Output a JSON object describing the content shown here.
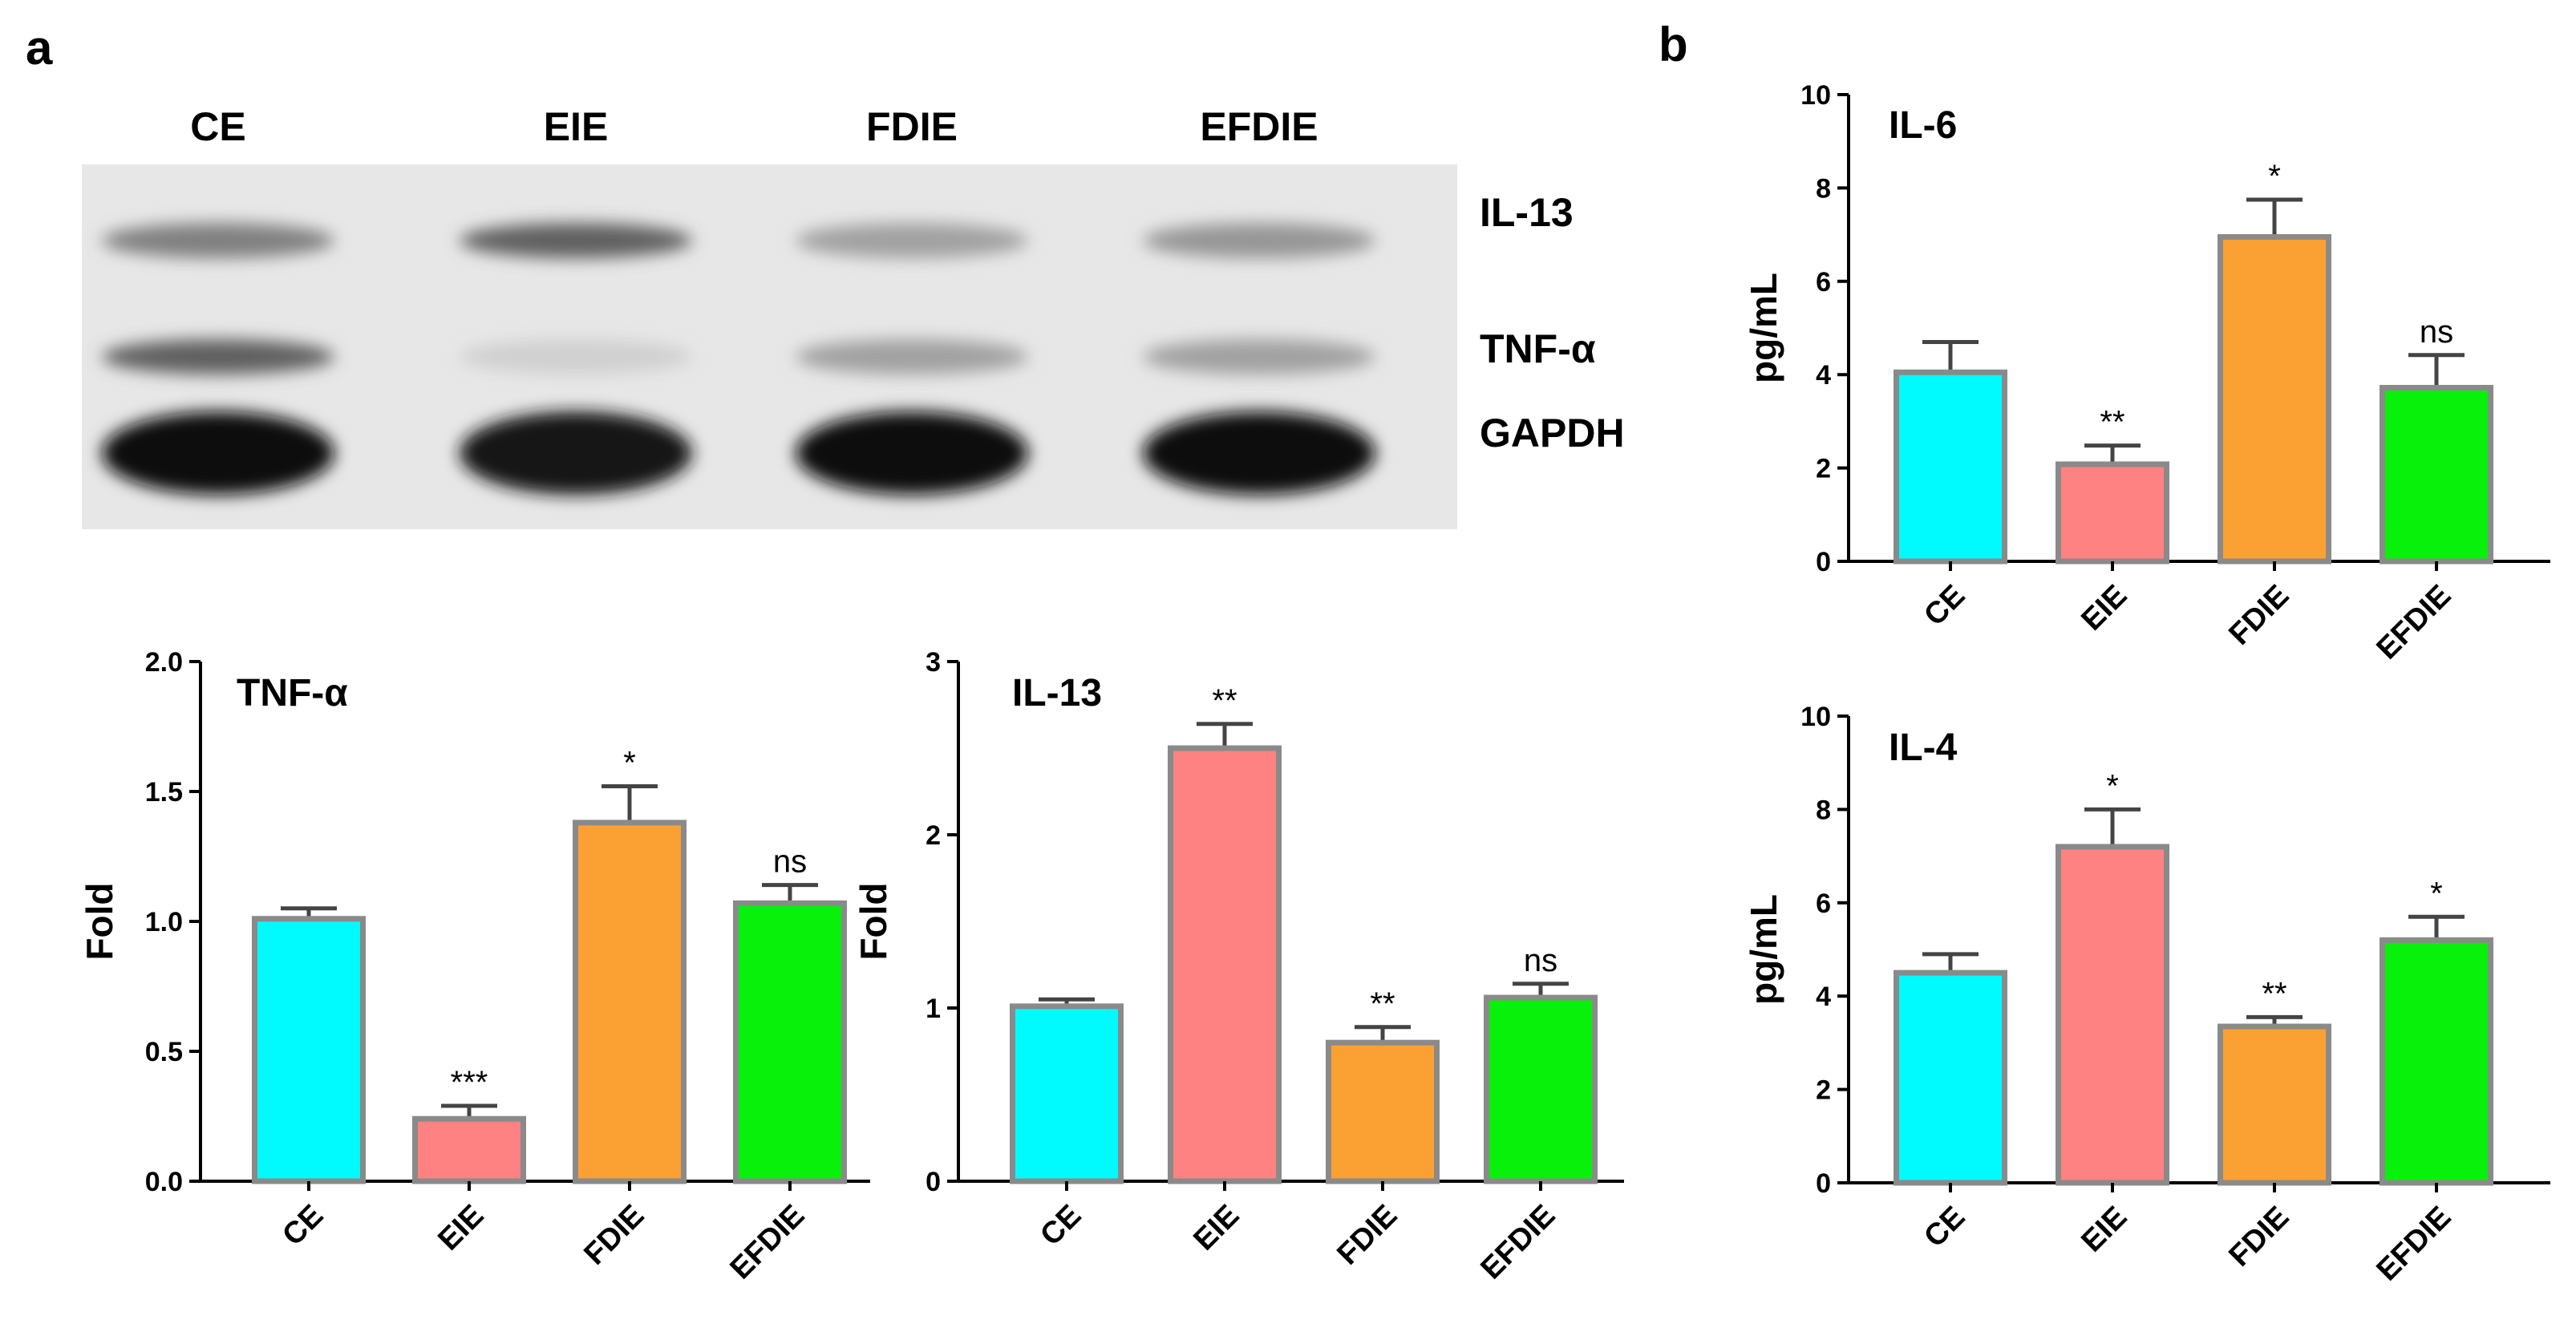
{
  "panels": {
    "a": "a",
    "b": "b"
  },
  "blot": {
    "lanes": [
      "CE",
      "EIE",
      "FDIE",
      "EFDIE"
    ],
    "bands": [
      {
        "label": "IL-13",
        "intensity": [
          0.45,
          0.6,
          0.3,
          0.35
        ]
      },
      {
        "label": "TNF-α",
        "intensity": [
          0.6,
          0.08,
          0.3,
          0.3
        ]
      },
      {
        "label": "GAPDH",
        "intensity": [
          0.98,
          0.95,
          1.0,
          1.0
        ]
      }
    ]
  },
  "colors": {
    "CE": "#00fbfe",
    "EIE": "#fd8281",
    "FDIE": "#fba134",
    "EFDIE": "#08f10a",
    "bar_outline": "#8a8a8a",
    "axis": "#000000"
  },
  "chart_data": [
    {
      "id": "tnf",
      "type": "bar",
      "title": "TNF-α",
      "ylabel": "Fold",
      "xlabel": "",
      "categories": [
        "CE",
        "EIE",
        "FDIE",
        "EFDIE"
      ],
      "values": [
        1.01,
        0.24,
        1.38,
        1.07
      ],
      "errors": [
        0.04,
        0.05,
        0.14,
        0.07
      ],
      "significance": [
        "",
        "***",
        "*",
        "ns"
      ],
      "ylim": [
        0,
        2.0
      ],
      "yticks": [
        "0.0",
        "0.5",
        "1.0",
        "1.5",
        "2.0"
      ]
    },
    {
      "id": "il13",
      "type": "bar",
      "title": "IL-13",
      "ylabel": "Fold",
      "xlabel": "",
      "categories": [
        "CE",
        "EIE",
        "FDIE",
        "EFDIE"
      ],
      "values": [
        1.01,
        2.5,
        0.8,
        1.06
      ],
      "errors": [
        0.04,
        0.14,
        0.09,
        0.08
      ],
      "significance": [
        "",
        "**",
        "**",
        "ns"
      ],
      "ylim": [
        0,
        3
      ],
      "yticks": [
        "0",
        "1",
        "2",
        "3"
      ]
    },
    {
      "id": "il6",
      "type": "bar",
      "title": "IL-6",
      "ylabel": "pg/mL",
      "xlabel": "",
      "categories": [
        "CE",
        "EIE",
        "FDIE",
        "EFDIE"
      ],
      "values": [
        4.05,
        2.08,
        6.95,
        3.72
      ],
      "errors": [
        0.65,
        0.4,
        0.8,
        0.7
      ],
      "significance": [
        "",
        "**",
        "*",
        "ns"
      ],
      "ylim": [
        0,
        10
      ],
      "yticks": [
        "0",
        "2",
        "4",
        "6",
        "8",
        "10"
      ]
    },
    {
      "id": "il4",
      "type": "bar",
      "title": "IL-4",
      "ylabel": "pg/mL",
      "xlabel": "",
      "categories": [
        "CE",
        "EIE",
        "FDIE",
        "EFDIE"
      ],
      "values": [
        4.5,
        7.2,
        3.35,
        5.2
      ],
      "errors": [
        0.4,
        0.8,
        0.2,
        0.5
      ],
      "significance": [
        "",
        "*",
        "**",
        "*"
      ],
      "ylim": [
        0,
        10
      ],
      "yticks": [
        "0",
        "2",
        "4",
        "6",
        "8",
        "10"
      ]
    }
  ]
}
